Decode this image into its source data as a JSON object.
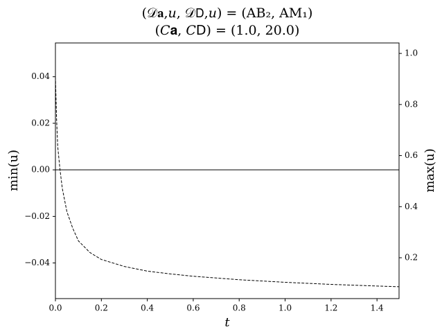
{
  "chart_data": {
    "type": "line",
    "title": [
      "(𝒟𝐚,𝑢, 𝒟𝖣,𝑢) = (AB₂, AM₁)",
      "(𝐶𝐚, 𝐶𝖣) = (1.0, 20.0)"
    ],
    "xlabel": "t",
    "ylabel": "min(u)",
    "y2label": "max(u)",
    "x": [
      0,
      0.005,
      0.01,
      0.02,
      0.03,
      0.05,
      0.075,
      0.1,
      0.15,
      0.2,
      0.3,
      0.4,
      0.5,
      0.6,
      0.8,
      1.0,
      1.2,
      1.4,
      1.496
    ],
    "series": [
      {
        "color": "#000000",
        "dash": true,
        "values": [
          0.04,
          0.022,
          0.01,
          0.0,
          -0.008,
          -0.018,
          -0.025,
          -0.0305,
          -0.0355,
          -0.0385,
          -0.0415,
          -0.0435,
          -0.0447,
          -0.0457,
          -0.0472,
          -0.0483,
          -0.0492,
          -0.0499,
          -0.0502
        ]
      }
    ],
    "hline": 0,
    "xlim": [
      0,
      1.496
    ],
    "ylim": [
      -0.0553,
      0.0545
    ],
    "y2lim": [
      0.04,
      1.041
    ],
    "xticks": [
      {
        "value": 0,
        "label": "0.0"
      },
      0.2,
      0.4,
      0.6,
      0.8,
      {
        "value": 1,
        "label": "1.0"
      },
      1.2,
      1.4
    ],
    "yticks": [
      {
        "value": -0.04,
        "label": "−0.04"
      },
      {
        "value": -0.02,
        "label": "−0.02"
      },
      {
        "value": 0,
        "label": "0.00"
      },
      {
        "value": 0.02,
        "label": "0.02"
      },
      {
        "value": 0.04,
        "label": "0.04"
      }
    ],
    "y2ticks": [
      0.2,
      0.4,
      0.6,
      0.8,
      {
        "value": 1,
        "label": "1.0"
      }
    ]
  }
}
